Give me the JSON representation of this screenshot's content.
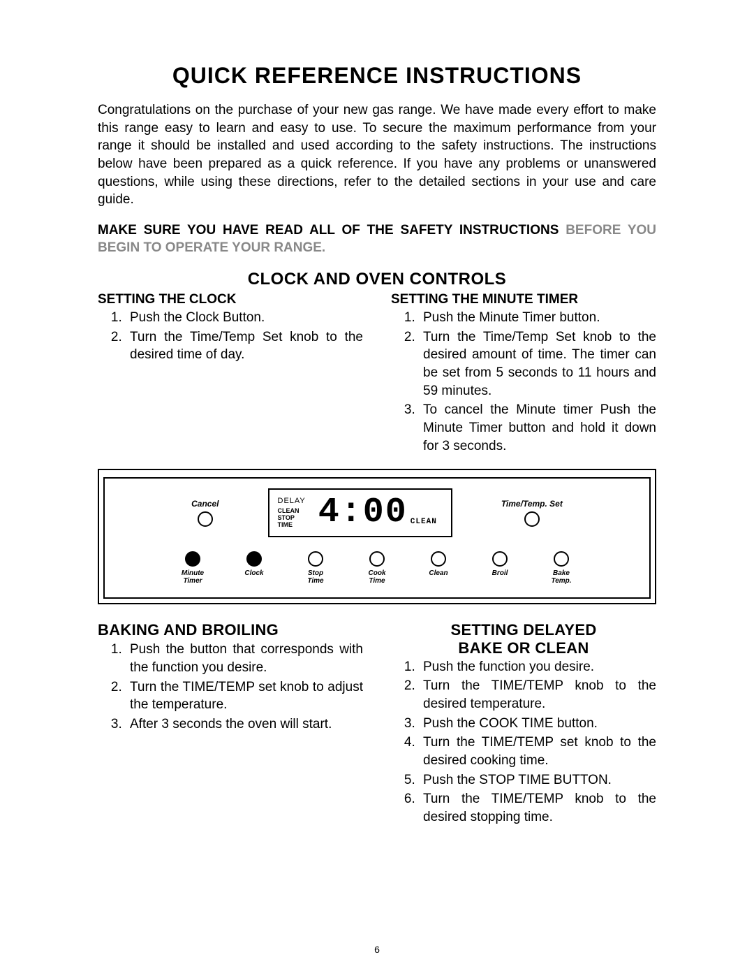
{
  "title": "QUICK REFERENCE INSTRUCTIONS",
  "intro": "Congratulations on the purchase of your new gas range. We have made every effort to make this range easy to learn and easy to use. To secure the maximum performance from your range it should be installed and used according to the safety instructions. The instructions below have been prepared as a quick reference. If you have any problems or unanswered questions, while using these directions, refer to the detailed sections in your use and care guide.",
  "warning_line1": "MAKE SURE YOU HAVE READ ALL OF THE SAFETY INSTRUCTIONS",
  "warning_line2": "BEFORE YOU BEGIN TO OPERATE YOUR RANGE.",
  "section1_title": "CLOCK AND OVEN CONTROLS",
  "clock": {
    "title": "SETTING THE CLOCK",
    "steps": [
      "Push the Clock Button.",
      "Turn the Time/Temp Set knob to the desired time of day."
    ]
  },
  "minute": {
    "title": "SETTING THE MINUTE TIMER",
    "steps": [
      "Push the Minute Timer button.",
      "Turn the Time/Temp Set knob to the desired amount of time. The timer can be set from 5 seconds to 11 hours and 59 minutes.",
      "To cancel the Minute timer Push the Minute Timer button and hold it down for 3 seconds."
    ]
  },
  "panel": {
    "cancel_label": "Cancel",
    "timetemp_label": "Time/Temp. Set",
    "disp_delay": "DELAY",
    "disp_clean": "CLEAN",
    "disp_stop": "STOP",
    "disp_time": "TIME",
    "digital_time": "4:00",
    "digital_clean": "CLEAN",
    "buttons": [
      {
        "label": "Minute\nTimer",
        "filled": true
      },
      {
        "label": "Clock",
        "filled": true
      },
      {
        "label": "Stop\nTime",
        "filled": false
      },
      {
        "label": "Cook\nTime",
        "filled": false
      },
      {
        "label": "Clean",
        "filled": false
      },
      {
        "label": "Broil",
        "filled": false
      },
      {
        "label": "Bake\nTemp.",
        "filled": false
      }
    ]
  },
  "baking": {
    "title": "BAKING AND BROILING",
    "steps": [
      "Push the button that corresponds with the function you desire.",
      "Turn the TIME/TEMP set knob to adjust the temperature.",
      "After 3 seconds the oven will start."
    ]
  },
  "delayed": {
    "title_l1": "SETTING DELAYED",
    "title_l2": "BAKE OR CLEAN",
    "steps": [
      "Push the function you desire.",
      "Turn the TIME/TEMP knob to the desired temperature.",
      "Push the COOK TIME button.",
      "Turn the TIME/TEMP set knob to the desired cooking time.",
      "Push the STOP TIME BUTTON.",
      "Turn the TIME/TEMP knob to the desired stopping time."
    ]
  },
  "page_number": "6"
}
